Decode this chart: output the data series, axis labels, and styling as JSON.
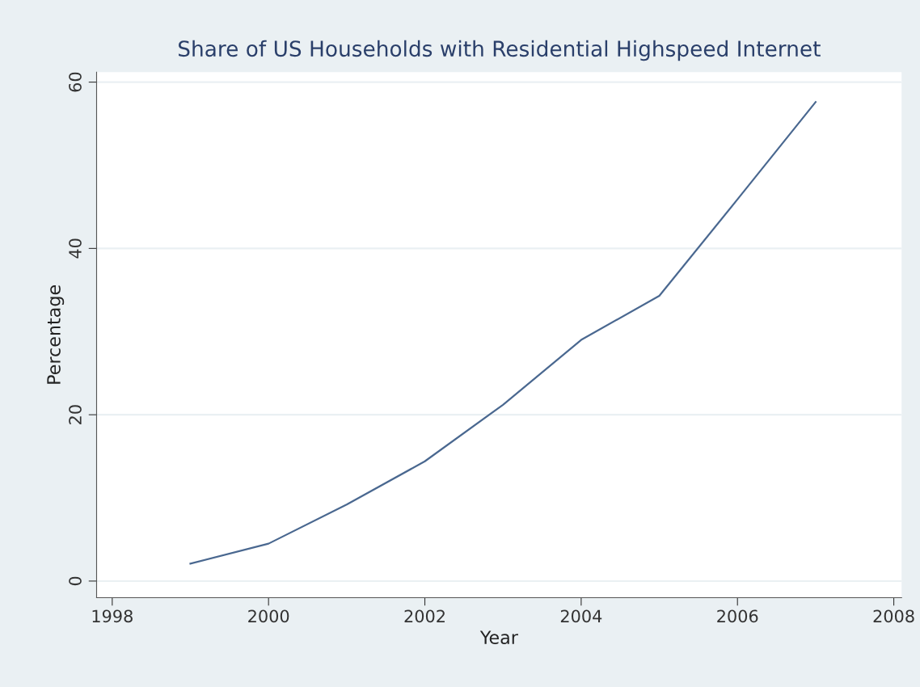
{
  "chart_data": {
    "type": "line",
    "title": "Share of US Households with Residential Highspeed Internet",
    "xlabel": "Year",
    "ylabel": "Percentage",
    "x": [
      1999,
      2000,
      2001,
      2002,
      2003,
      2004,
      2005,
      2006,
      2007
    ],
    "series": [
      {
        "color": "#4a6890",
        "values": [
          2.1,
          4.5,
          9.2,
          14.4,
          21.2,
          29.0,
          34.3,
          45.9,
          57.6
        ]
      }
    ],
    "xlim": [
      1997.8,
      2008.1
    ],
    "xticks": [
      1998,
      2000,
      2002,
      2004,
      2006,
      2008
    ],
    "ylim": [
      -2,
      61.2
    ],
    "yticks": [
      0,
      20,
      40,
      60
    ],
    "grid": "y",
    "marker": "none",
    "line_style": "solid"
  }
}
